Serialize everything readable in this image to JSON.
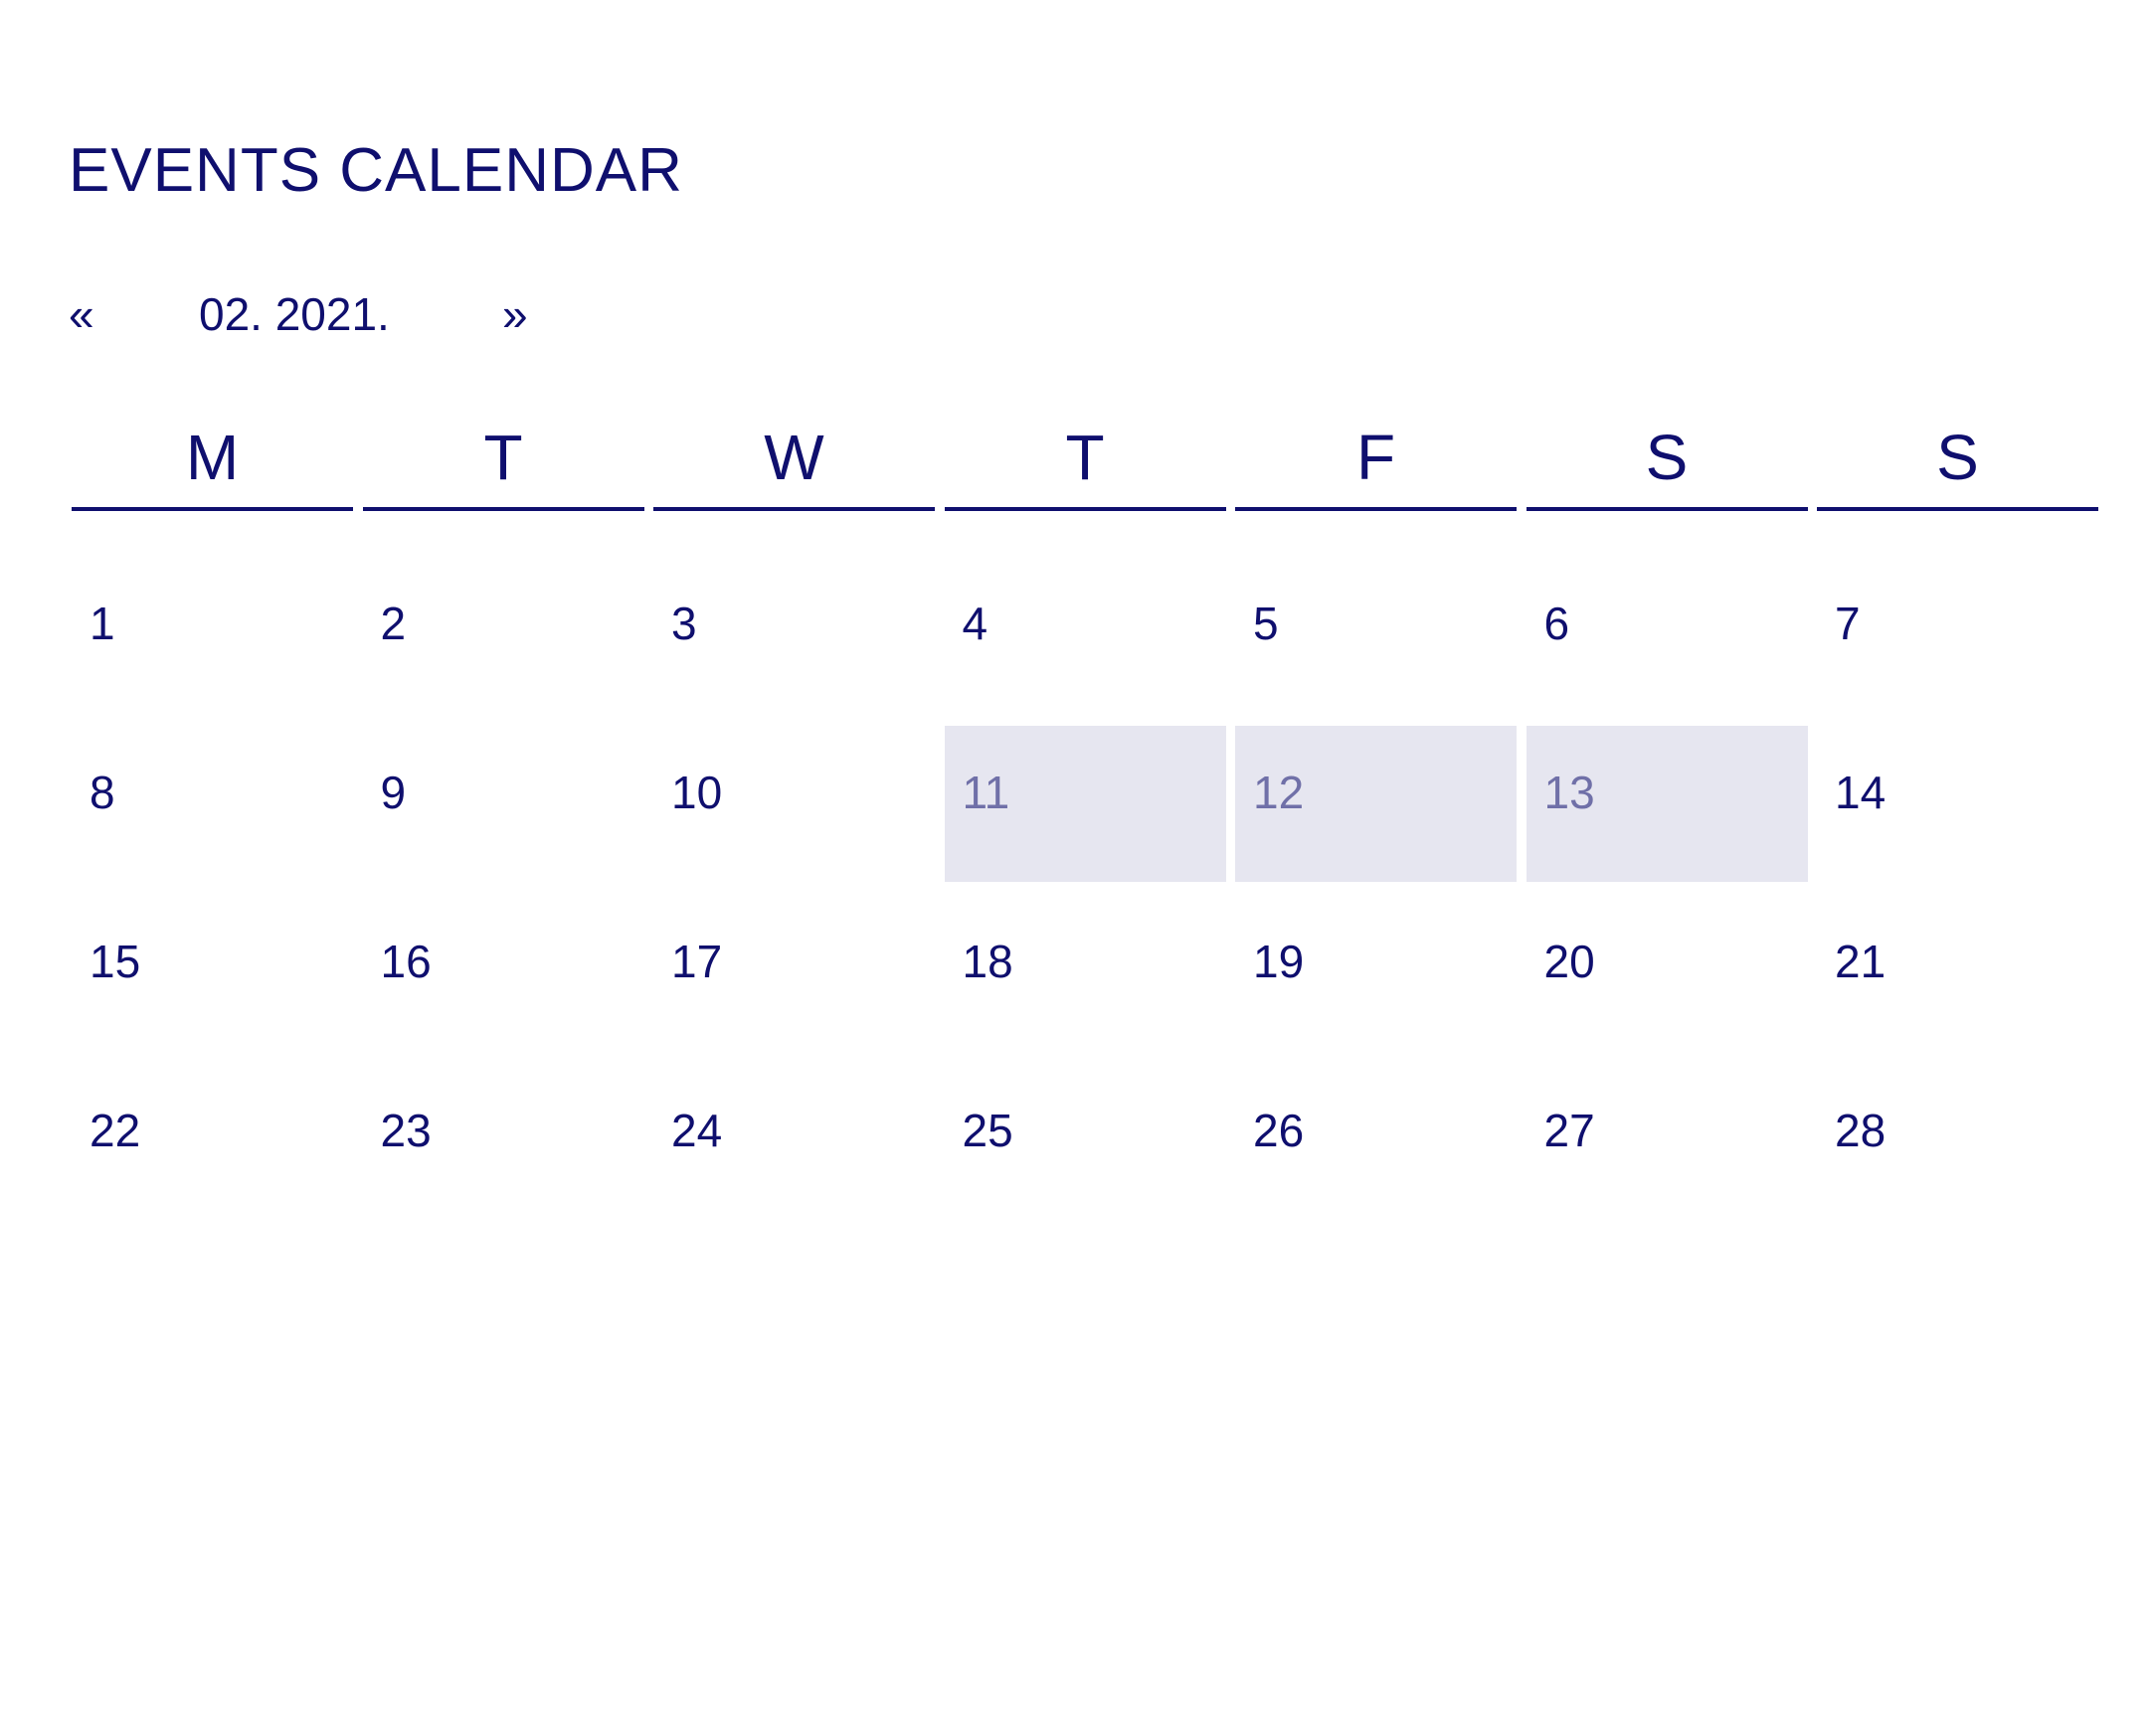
{
  "header": {
    "title": "EVENTS CALENDAR"
  },
  "nav": {
    "prev_label": "«",
    "month_label": "02. 2021.",
    "next_label": "»"
  },
  "colors": {
    "text": "#0f0f6e",
    "event_background": "#e6e6f0",
    "event_text": "#7070a8"
  },
  "weekdays": [
    "M",
    "T",
    "W",
    "T",
    "F",
    "S",
    "S"
  ],
  "weeks": [
    [
      {
        "day": "1"
      },
      {
        "day": "2"
      },
      {
        "day": "3"
      },
      {
        "day": "4"
      },
      {
        "day": "5"
      },
      {
        "day": "6"
      },
      {
        "day": "7"
      }
    ],
    [
      {
        "day": "8"
      },
      {
        "day": "9"
      },
      {
        "day": "10"
      },
      {
        "day": "11",
        "event": true
      },
      {
        "day": "12",
        "event": true
      },
      {
        "day": "13",
        "event": true
      },
      {
        "day": "14"
      }
    ],
    [
      {
        "day": "15"
      },
      {
        "day": "16"
      },
      {
        "day": "17"
      },
      {
        "day": "18"
      },
      {
        "day": "19"
      },
      {
        "day": "20"
      },
      {
        "day": "21"
      }
    ],
    [
      {
        "day": "22"
      },
      {
        "day": "23"
      },
      {
        "day": "24"
      },
      {
        "day": "25"
      },
      {
        "day": "26"
      },
      {
        "day": "27"
      },
      {
        "day": "28"
      }
    ]
  ]
}
